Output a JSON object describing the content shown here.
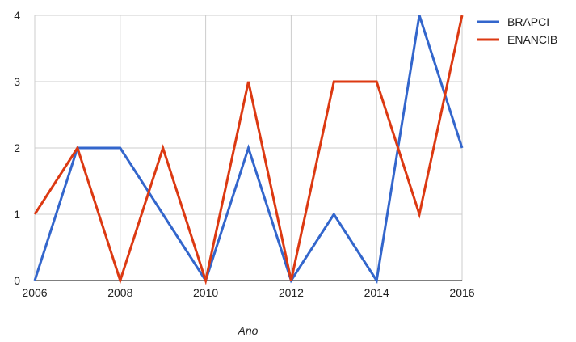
{
  "chart_data": {
    "type": "line",
    "title": "",
    "xlabel": "Ano",
    "ylabel": "",
    "x": [
      2006,
      2007,
      2008,
      2009,
      2010,
      2011,
      2012,
      2013,
      2014,
      2015,
      2016
    ],
    "xlim": [
      2006,
      2016
    ],
    "ylim": [
      0,
      4
    ],
    "x_ticks": [
      "2006",
      "2008",
      "2010",
      "2012",
      "2014",
      "2016"
    ],
    "y_ticks": [
      "0",
      "1",
      "2",
      "3",
      "4"
    ],
    "grid": true,
    "legend_position": "right",
    "series": [
      {
        "name": "BRAPCI",
        "color": "#3366cc",
        "values": [
          0,
          2,
          2,
          1,
          0,
          2,
          0,
          1,
          0,
          4,
          2
        ]
      },
      {
        "name": "ENANCIB",
        "color": "#dc3912",
        "values": [
          1,
          2,
          0,
          2,
          0,
          3,
          0,
          3,
          3,
          1,
          4
        ]
      }
    ]
  }
}
